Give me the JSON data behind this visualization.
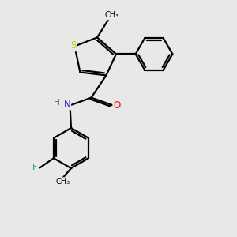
{
  "background_color": "#e8e8e8",
  "bond_color": "#000000",
  "atom_colors": {
    "S": "#cccc00",
    "N": "#2222ff",
    "O": "#ff0000",
    "F": "#00aaaa",
    "C": "#000000",
    "H": "#555555"
  },
  "line_width": 1.6,
  "fig_bg": "#e8e8e8"
}
